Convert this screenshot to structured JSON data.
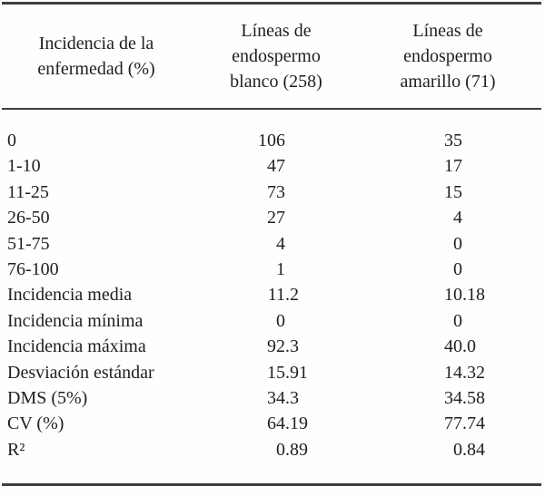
{
  "table": {
    "columns": [
      {
        "id": "incidencia",
        "header": "Incidencia de la enfermedad (%)",
        "header_lines": [
          "Incidencia de la",
          "enfermedad (%)"
        ]
      },
      {
        "id": "blanco",
        "header": "Líneas de endospermo blanco (258)",
        "header_lines": [
          "Líneas de",
          "endospermo",
          "blanco (258)"
        ]
      },
      {
        "id": "amarillo",
        "header": "Líneas de endospermo amarillo (71)",
        "header_lines": [
          "Líneas de",
          "endospermo",
          "amarillo (71)"
        ]
      }
    ],
    "rows": [
      {
        "label": "0",
        "blanco": "106",
        "amarillo": "35"
      },
      {
        "label": "1-10",
        "blanco": "47",
        "amarillo": "17"
      },
      {
        "label": "11-25",
        "blanco": "73",
        "amarillo": "15"
      },
      {
        "label": "26-50",
        "blanco": "27",
        "amarillo": "4"
      },
      {
        "label": "51-75",
        "blanco": "4",
        "amarillo": "0"
      },
      {
        "label": "76-100",
        "blanco": "1",
        "amarillo": "0"
      },
      {
        "label": "Incidencia media",
        "blanco": "11.2",
        "amarillo": "10.18"
      },
      {
        "label": "Incidencia mínima",
        "blanco": "0",
        "amarillo": "0"
      },
      {
        "label": "Incidencia máxima",
        "blanco": "92.3",
        "amarillo": "40.0"
      },
      {
        "label": "Desviación estándar",
        "blanco": "15.91",
        "amarillo": "14.32"
      },
      {
        "label": "DMS (5%)",
        "blanco": "34.3",
        "amarillo": "34.58"
      },
      {
        "label": "CV (%)",
        "blanco": "64.19",
        "amarillo": "77.74"
      },
      {
        "label": "R²",
        "blanco": "0.89",
        "amarillo": "0.84"
      }
    ]
  },
  "chart_data": {
    "type": "table",
    "columns": [
      "Incidencia de la enfermedad (%)",
      "Líneas de endospermo blanco (258)",
      "Líneas de endospermo amarillo (71)"
    ],
    "rows": [
      [
        "0",
        "106",
        "35"
      ],
      [
        "1-10",
        "47",
        "17"
      ],
      [
        "11-25",
        "73",
        "15"
      ],
      [
        "26-50",
        "27",
        "4"
      ],
      [
        "51-75",
        "4",
        "0"
      ],
      [
        "76-100",
        "1",
        "0"
      ],
      [
        "Incidencia media",
        "11.2",
        "10.18"
      ],
      [
        "Incidencia mínima",
        "0",
        "0"
      ],
      [
        "Incidencia máxima",
        "92.3",
        "40.0"
      ],
      [
        "Desviación estándar",
        "15.91",
        "14.32"
      ],
      [
        "DMS (5%)",
        "34.3",
        "34.58"
      ],
      [
        "CV (%)",
        "64.19",
        "77.74"
      ],
      [
        "R²",
        "0.89",
        "0.84"
      ]
    ]
  },
  "colors": {
    "text": "#1f1f1f",
    "rule": "#3f3f3f",
    "background": "#fefefe"
  }
}
